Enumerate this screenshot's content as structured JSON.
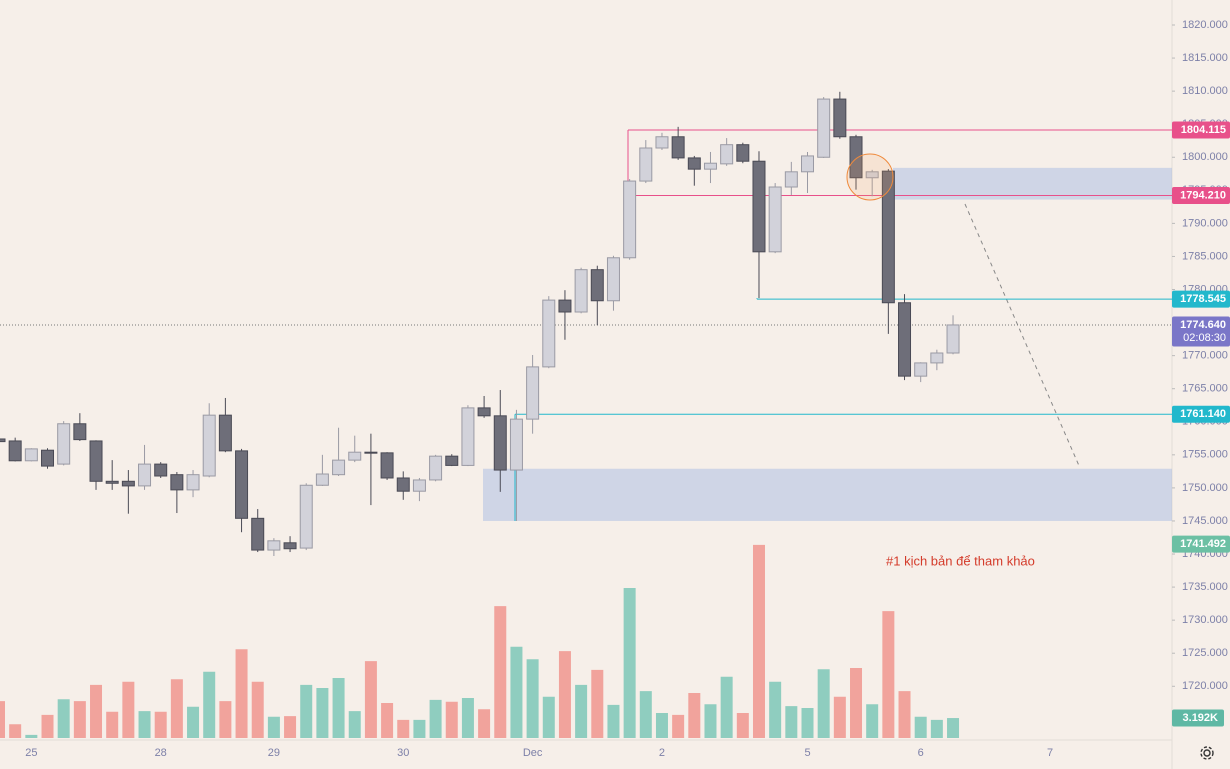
{
  "chart_data": {
    "type": "candlestick",
    "annotation": "#1 kịch bản để tham khảo",
    "categories": [
      null,
      null,
      "25",
      null,
      null,
      null,
      null,
      null,
      null,
      null,
      "28",
      null,
      null,
      null,
      null,
      null,
      null,
      "29",
      null,
      null,
      null,
      null,
      null,
      null,
      null,
      "30",
      null,
      null,
      null,
      null,
      null,
      null,
      null,
      "Dec",
      null,
      null,
      null,
      null,
      null,
      null,
      null,
      "2",
      null,
      null,
      null,
      null,
      null,
      null,
      null,
      null,
      "5",
      null,
      null,
      null,
      null,
      null,
      null,
      "6",
      null,
      null,
      null,
      null,
      null,
      null,
      null,
      "7"
    ],
    "open": [
      1757.4,
      1757.1,
      1754.1,
      1755.7,
      1753.6,
      1759.7,
      1757.1,
      1751.0,
      1751.0,
      1750.3,
      1753.6,
      1752.0,
      1749.7,
      1751.8,
      1761.0,
      1755.6,
      1745.4,
      1740.6,
      1741.7,
      1740.9,
      1750.4,
      1752.0,
      1754.2,
      1755.4,
      1755.3,
      1751.5,
      1749.5,
      1751.2,
      1754.8,
      1753.4,
      1762.1,
      1760.9,
      1752.7,
      1760.4,
      1768.3,
      1778.4,
      1776.6,
      1783.0,
      1778.3,
      1784.8,
      1796.4,
      1801.4,
      1803.1,
      1799.9,
      1798.2,
      1799.0,
      1801.9,
      1799.4,
      1785.7,
      1795.5,
      1797.8,
      1800.0,
      1808.8,
      1803.1,
      1796.9,
      1797.9,
      1778.0,
      1766.9,
      1768.9,
      1770.4,
      null,
      null,
      null,
      null,
      null,
      null
    ],
    "high": [
      1757.8,
      1757.6,
      1756.0,
      1756.0,
      1760.1,
      1761.3,
      1757.2,
      1754.2,
      1752.7,
      1756.5,
      1753.9,
      1752.4,
      1752.7,
      1762.8,
      1763.6,
      1755.9,
      1746.8,
      1742.4,
      1742.7,
      1750.7,
      1755.0,
      1759.1,
      1757.9,
      1758.2,
      1755.4,
      1752.5,
      1751.5,
      1755.0,
      1755.1,
      1762.5,
      1763.9,
      1764.8,
      1761.8,
      1770.1,
      1779.0,
      1779.9,
      1783.3,
      1783.6,
      1785.1,
      1796.7,
      1802.6,
      1803.7,
      1804.6,
      1800.2,
      1800.8,
      1802.9,
      1802.2,
      1800.9,
      1796.1,
      1799.3,
      1800.8,
      1809.1,
      1809.9,
      1803.4,
      1798.1,
      1798.2,
      1779.3,
      1769.0,
      1770.9,
      1776.1,
      null,
      null,
      null,
      null,
      null,
      null
    ],
    "low": [
      1756.8,
      1754.0,
      1754.0,
      1752.9,
      1753.4,
      1757.1,
      1749.7,
      1749.7,
      1746.1,
      1749.7,
      1751.5,
      1746.2,
      1748.6,
      1751.6,
      1755.4,
      1743.3,
      1740.3,
      1739.7,
      1740.3,
      1740.6,
      1750.3,
      1751.8,
      1753.9,
      1747.4,
      1751.2,
      1748.2,
      1748.0,
      1751.0,
      1753.3,
      1753.3,
      1760.6,
      1749.4,
      1745.0,
      1758.2,
      1768.1,
      1772.4,
      1776.4,
      1774.6,
      1776.8,
      1784.5,
      1796.1,
      1801.1,
      1799.6,
      1795.7,
      1796.1,
      1798.7,
      1799.1,
      1778.7,
      1785.5,
      1794.3,
      1794.6,
      1799.9,
      1802.8,
      1795.1,
      1794.1,
      1773.3,
      1766.3,
      1766.0,
      1767.8,
      1770.2,
      null,
      null,
      null,
      null,
      null,
      null
    ],
    "close": [
      1757.0,
      1754.1,
      1755.9,
      1753.3,
      1759.7,
      1757.3,
      1751.0,
      1750.7,
      1750.3,
      1753.6,
      1751.8,
      1749.7,
      1752.0,
      1761.0,
      1755.6,
      1745.4,
      1740.6,
      1742.0,
      1740.8,
      1750.4,
      1752.1,
      1754.2,
      1755.4,
      1755.3,
      1751.5,
      1749.5,
      1751.2,
      1754.8,
      1753.4,
      1762.1,
      1760.9,
      1752.7,
      1760.4,
      1768.3,
      1778.4,
      1776.6,
      1783.0,
      1778.3,
      1784.8,
      1796.4,
      1801.4,
      1803.1,
      1799.9,
      1798.2,
      1799.1,
      1801.9,
      1799.4,
      1785.7,
      1795.5,
      1797.8,
      1800.2,
      1808.8,
      1803.1,
      1796.9,
      1797.8,
      1778.0,
      1766.9,
      1768.9,
      1770.4,
      1774.64,
      null,
      null,
      null,
      null,
      null,
      null
    ],
    "up_color": "#d2d2da",
    "down_color": "#6e6e79",
    "volume": {
      "values": [
        5.9,
        2.2,
        0.5,
        3.7,
        6.2,
        5.9,
        8.5,
        4.2,
        9.0,
        4.3,
        4.2,
        9.4,
        5.0,
        10.6,
        5.9,
        14.2,
        9.0,
        3.4,
        3.5,
        8.5,
        8.0,
        9.6,
        4.3,
        12.3,
        5.6,
        2.9,
        2.9,
        6.1,
        5.8,
        6.4,
        4.6,
        21.1,
        14.6,
        12.6,
        6.6,
        13.9,
        8.5,
        10.9,
        5.3,
        24.0,
        7.5,
        4.0,
        3.7,
        7.2,
        5.4,
        9.8,
        4.0,
        30.9,
        9.0,
        5.1,
        4.8,
        11.0,
        6.6,
        11.2,
        5.4,
        20.3,
        7.5,
        3.4,
        2.9,
        3.192,
        null,
        null,
        null,
        null,
        null,
        null
      ],
      "last_label": "3.192K",
      "up_color": "#8fcdbf",
      "down_color": "#f1a39c"
    },
    "ylim": [
      1712.18,
      1823.78
    ],
    "yticks": [
      {
        "value": 1720,
        "label": "1720.000"
      },
      {
        "value": 1725,
        "label": "1725.000"
      },
      {
        "value": 1730,
        "label": "1730.000"
      },
      {
        "value": 1735,
        "label": "1735.000"
      },
      {
        "value": 1740,
        "label": "1740.000"
      },
      {
        "value": 1745,
        "label": "1745.000"
      },
      {
        "value": 1750,
        "label": "1750.000"
      },
      {
        "value": 1755,
        "label": "1755.000"
      },
      {
        "value": 1760,
        "label": "1760.000"
      },
      {
        "value": 1765,
        "label": "1765.000"
      },
      {
        "value": 1770,
        "label": "1770.000"
      },
      {
        "value": 1775,
        "label": "1775.000"
      },
      {
        "value": 1780,
        "label": "1780.000"
      },
      {
        "value": 1785,
        "label": "1785.000"
      },
      {
        "value": 1790,
        "label": "1790.000"
      },
      {
        "value": 1795,
        "label": "1795.000"
      },
      {
        "value": 1800,
        "label": "1800.000"
      },
      {
        "value": 1805,
        "label": "1805.000"
      },
      {
        "value": 1810,
        "label": "1810.000"
      },
      {
        "value": 1815,
        "label": "1815.000"
      },
      {
        "value": 1820,
        "label": "1820.000"
      }
    ],
    "price_markers": [
      {
        "value": 1804.115,
        "label": "1804.115",
        "color": "#e8508a"
      },
      {
        "value": 1794.21,
        "label": "1794.210",
        "color": "#e8508a"
      },
      {
        "value": 1778.545,
        "label": "1778.545",
        "color": "#22b8cc"
      },
      {
        "value": 1774.64,
        "label": "1774.640",
        "color": "#7a76c8",
        "countdown": "02:08:30"
      },
      {
        "value": 1761.14,
        "label": "1761.140",
        "color": "#22b8cc"
      },
      {
        "value": 1741.492,
        "label": "1741.492",
        "color": "#6cc0a4"
      }
    ],
    "zones": [
      {
        "top": 1798.4,
        "bottom": 1793.6
      },
      {
        "top": 1752.9,
        "bottom": 1745.0
      }
    ]
  }
}
